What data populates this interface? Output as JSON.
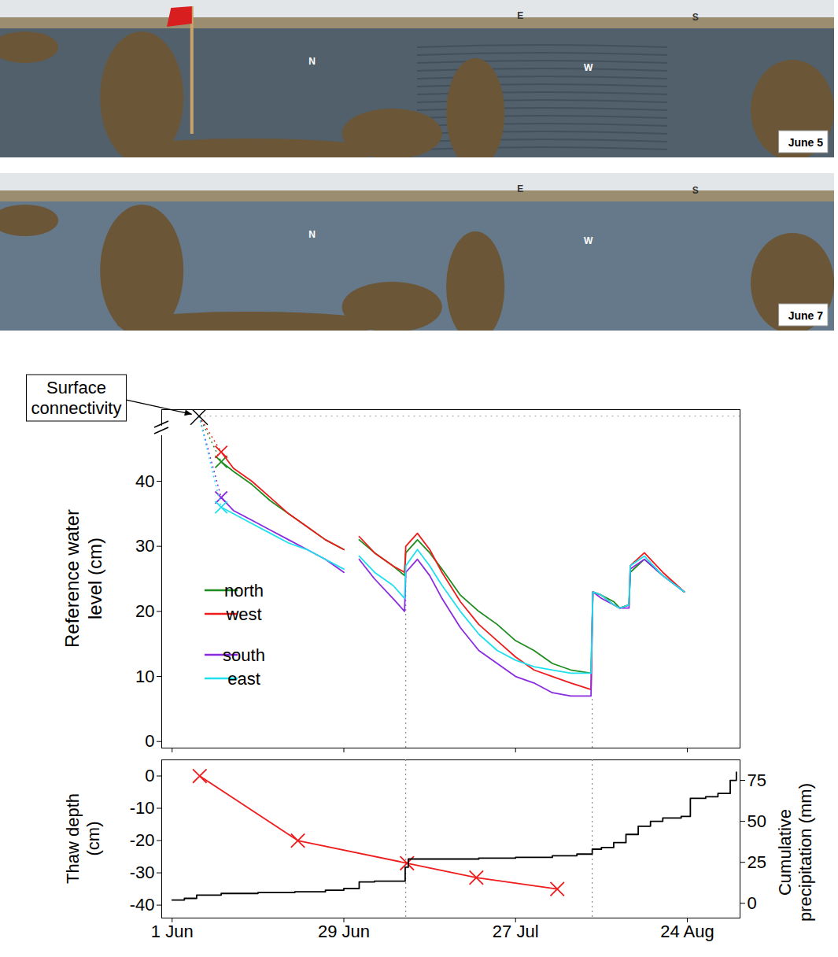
{
  "photos": [
    {
      "date": "June 5",
      "labels": [
        "N",
        "E",
        "W",
        "S"
      ]
    },
    {
      "date": "June 7",
      "labels": [
        "N",
        "E",
        "W",
        "S"
      ]
    }
  ],
  "chart_data": [
    {
      "type": "line",
      "y_label": "Reference water level (cm)",
      "x": [
        8,
        10,
        13,
        16,
        19,
        22,
        25,
        28,
        29,
        30.5,
        33,
        36,
        37.9,
        38.1,
        40,
        42,
        44,
        47,
        50,
        53,
        56,
        59,
        62,
        65,
        68.3,
        68.6,
        70,
        72,
        73,
        74.5,
        74.7,
        77,
        80,
        83.5
      ],
      "xlim": [
        -1.7,
        92.6
      ],
      "xticks": [
        {
          "value": 0,
          "label": "1 Jun"
        },
        {
          "value": 28,
          "label": "29 Jun"
        },
        {
          "value": 56,
          "label": "27 Jul"
        },
        {
          "value": 84,
          "label": "24 Aug"
        }
      ],
      "ylim": [
        -1,
        51
      ],
      "yticks": [
        0,
        10,
        20,
        30,
        40
      ],
      "tick_labels": "y",
      "legend": "left",
      "y_break": 47.5,
      "surface_connectivity": {
        "label": "Surface connectivity",
        "x": 4.4,
        "y": 50
      },
      "vertical_lines": [
        38.1,
        68.5
      ],
      "series": [
        {
          "name": "north",
          "color": "#1e8c1e",
          "marker": "x",
          "values": [
            43,
            41.5,
            39.5,
            37,
            35,
            33,
            31,
            29.5,
            null,
            31,
            29,
            27,
            25.5,
            29,
            31,
            29,
            26.5,
            22.5,
            20,
            18,
            15.5,
            14,
            12,
            11,
            10.5,
            23,
            22.5,
            21.5,
            20.5,
            21,
            26,
            28,
            25.5,
            23
          ]
        },
        {
          "name": "west",
          "color": "#ee1c1c",
          "marker": "x",
          "values": [
            44.5,
            42,
            40,
            37.5,
            35,
            33,
            31,
            29.5,
            null,
            31.5,
            29,
            27,
            26,
            30,
            32,
            29.5,
            26,
            21.5,
            18,
            15.5,
            13,
            11,
            10,
            9,
            8,
            23,
            22.5,
            21,
            20.5,
            21,
            27,
            29,
            26,
            23
          ]
        },
        {
          "name": "south",
          "color": "#8a2be2",
          "marker": "x",
          "values": [
            37.5,
            35.5,
            34,
            32.5,
            31,
            29.5,
            28,
            26,
            null,
            28,
            25,
            22,
            20,
            26,
            28,
            25.5,
            22,
            17.5,
            14,
            12,
            10,
            9,
            7.5,
            7,
            7,
            23,
            22,
            21,
            20.5,
            20.5,
            26.5,
            28,
            25.5,
            23
          ]
        },
        {
          "name": "east",
          "color": "#1ee0ee",
          "marker": "x",
          "values": [
            36,
            35,
            33.5,
            32,
            30.5,
            29.5,
            28,
            26.5,
            null,
            28.5,
            26,
            24,
            22,
            27,
            29.5,
            27,
            24,
            20,
            16.5,
            14,
            12.5,
            11.5,
            11,
            10.5,
            10.5,
            23,
            22.5,
            21,
            20.5,
            21,
            27,
            28.5,
            25.5,
            23
          ]
        }
      ]
    },
    {
      "type": "line",
      "y_label": "Thaw depth (cm)",
      "y2_label": "Cumulative precipitation (mm)",
      "xlim": [
        -1.7,
        92.6
      ],
      "xticks": [
        {
          "value": 0,
          "label": "1 Jun"
        },
        {
          "value": 28,
          "label": "29 Jun"
        },
        {
          "value": 56,
          "label": "27 Jul"
        },
        {
          "value": 84,
          "label": "24 Aug"
        }
      ],
      "ylim": [
        -44,
        5
      ],
      "yticks": [
        0,
        -10,
        -20,
        -30,
        -40
      ],
      "y2lim": [
        -9,
        87.5
      ],
      "y2ticks": [
        0,
        25,
        50,
        75
      ],
      "vertical_lines": [
        38.1,
        68.5
      ],
      "series": [
        {
          "color": "#ee1c1c",
          "marker": "x",
          "x": [
            4.5,
            20.5,
            38.3,
            49.6,
            62.8
          ],
          "values": [
            0,
            -20,
            -27,
            -31.5,
            -35
          ]
        },
        {
          "color": "#000000",
          "axis": "y2",
          "line_style": "step",
          "x": [
            0,
            2,
            4,
            8,
            14,
            20,
            25,
            28,
            30.5,
            33,
            38,
            38.5,
            45,
            50,
            56,
            62,
            66,
            68.5,
            70,
            72,
            74,
            76,
            78,
            80,
            83,
            84.5,
            87,
            89,
            91,
            92
          ],
          "values": [
            2,
            3,
            5,
            6,
            6.5,
            7,
            8,
            9,
            13,
            13.5,
            22,
            27,
            27,
            27.5,
            28,
            29,
            30,
            33,
            34,
            37,
            42,
            47,
            50,
            52,
            53,
            64,
            65,
            67,
            75,
            80
          ]
        }
      ]
    }
  ]
}
